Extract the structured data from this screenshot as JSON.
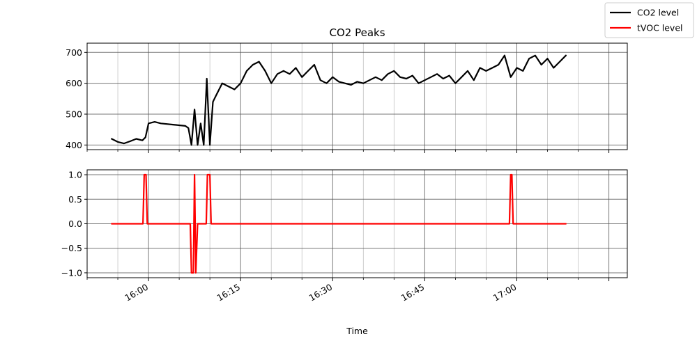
{
  "chart_data": [
    {
      "type": "line",
      "title": "CO2 Peaks",
      "xlabel": "",
      "ylabel": "",
      "xlim": [
        "15:50",
        "17:18"
      ],
      "ylim": [
        385,
        730
      ],
      "yticks": [
        400,
        500,
        600,
        700
      ],
      "ytick_labels": [
        "400",
        "500",
        "600",
        "700"
      ],
      "grid": true,
      "series": [
        {
          "name": "CO2 level",
          "color": "#000000",
          "x": [
            "15:54",
            "15:55",
            "15:56",
            "15:57",
            "15:58",
            "15:59",
            "15:59.5",
            "16:00",
            "16:01",
            "16:02",
            "16:03",
            "16:04",
            "16:05",
            "16:06",
            "16:06.5",
            "16:07",
            "16:07.5",
            "16:08",
            "16:08.5",
            "16:09",
            "16:09.5",
            "16:10",
            "16:10.5",
            "16:11",
            "16:12",
            "16:13",
            "16:14",
            "16:15",
            "16:16",
            "16:17",
            "16:18",
            "16:19",
            "16:20",
            "16:21",
            "16:22",
            "16:23",
            "16:24",
            "16:25",
            "16:26",
            "16:27",
            "16:28",
            "16:29",
            "16:30",
            "16:31",
            "16:32",
            "16:33",
            "16:34",
            "16:35",
            "16:36",
            "16:37",
            "16:38",
            "16:39",
            "16:40",
            "16:41",
            "16:42",
            "16:43",
            "16:44",
            "16:45",
            "16:46",
            "16:47",
            "16:48",
            "16:49",
            "16:50",
            "16:51",
            "16:52",
            "16:53",
            "16:54",
            "16:55",
            "16:56",
            "16:57",
            "16:58",
            "16:59",
            "17:00",
            "17:01",
            "17:02",
            "17:03",
            "17:04",
            "17:05",
            "17:06",
            "17:07",
            "17:08"
          ],
          "y": [
            420,
            410,
            405,
            412,
            420,
            415,
            425,
            470,
            475,
            470,
            468,
            466,
            464,
            462,
            455,
            400,
            515,
            400,
            470,
            400,
            615,
            400,
            540,
            560,
            600,
            590,
            580,
            600,
            640,
            660,
            670,
            640,
            600,
            630,
            640,
            630,
            650,
            620,
            640,
            660,
            610,
            600,
            620,
            605,
            600,
            595,
            605,
            600,
            610,
            620,
            610,
            630,
            640,
            620,
            615,
            625,
            600,
            610,
            620,
            630,
            615,
            625,
            600,
            620,
            640,
            610,
            650,
            640,
            650,
            660,
            690,
            620,
            650,
            640,
            680,
            690,
            660,
            680,
            650,
            670,
            690
          ]
        }
      ]
    },
    {
      "type": "line",
      "title": "",
      "xlabel": "Time",
      "ylabel": "",
      "xlim": [
        "15:50",
        "17:18"
      ],
      "ylim": [
        -1.1,
        1.1
      ],
      "yticks": [
        -1.0,
        -0.5,
        0.0,
        0.5,
        1.0
      ],
      "ytick_labels": [
        "−1.0",
        "−0.5",
        "0.0",
        "0.5",
        "1.0"
      ],
      "xticks": [
        "16:00",
        "16:15",
        "16:30",
        "16:45",
        "17:00"
      ],
      "grid": true,
      "series": [
        {
          "name": "tVOC level",
          "color": "#ff0000",
          "x": [
            "15:54",
            "15:59.1",
            "15:59.3",
            "15:59.6",
            "15:59.8",
            "16:06.8",
            "16:07.0",
            "16:07.3",
            "16:07.5",
            "16:07.7",
            "16:08.0",
            "16:09.4",
            "16:09.6",
            "16:10.0",
            "16:10.2",
            "16:58.8",
            "16:59.0",
            "16:59.2",
            "16:59.4",
            "17:08"
          ],
          "y": [
            0,
            0,
            1,
            1,
            0,
            0,
            -1,
            -1,
            1,
            -1,
            0,
            0,
            1,
            1,
            0,
            0,
            1,
            1,
            0,
            0
          ]
        }
      ]
    }
  ],
  "legend": {
    "placement": "top-right",
    "entries": [
      {
        "label": "CO2 level",
        "color": "#000000"
      },
      {
        "label": "tVOC level",
        "color": "#ff0000"
      }
    ]
  }
}
